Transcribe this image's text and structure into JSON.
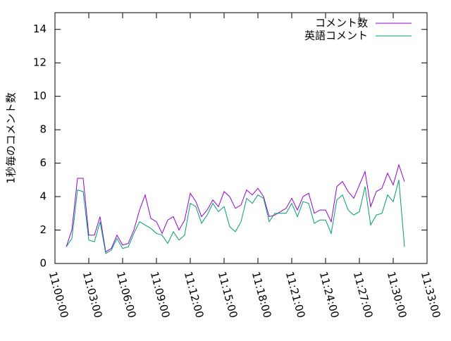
{
  "chart_data": {
    "type": "line",
    "ylabel": "1秒毎のコメント数",
    "x": [
      "11:01:00",
      "11:01:30",
      "11:02:00",
      "11:02:30",
      "11:03:00",
      "11:03:30",
      "11:04:00",
      "11:04:30",
      "11:05:00",
      "11:05:30",
      "11:06:00",
      "11:06:30",
      "11:07:00",
      "11:07:30",
      "11:08:00",
      "11:08:30",
      "11:09:00",
      "11:09:30",
      "11:10:00",
      "11:10:30",
      "11:11:00",
      "11:11:30",
      "11:12:00",
      "11:12:30",
      "11:13:00",
      "11:13:30",
      "11:14:00",
      "11:14:30",
      "11:15:00",
      "11:15:30",
      "11:16:00",
      "11:16:30",
      "11:17:00",
      "11:17:30",
      "11:18:00",
      "11:18:30",
      "11:19:00",
      "11:19:30",
      "11:20:00",
      "11:20:30",
      "11:21:00",
      "11:21:30",
      "11:22:00",
      "11:22:30",
      "11:23:00",
      "11:23:30",
      "11:24:00",
      "11:24:30",
      "11:25:00",
      "11:25:30",
      "11:26:00",
      "11:26:30",
      "11:27:00",
      "11:27:30",
      "11:28:00",
      "11:28:30",
      "11:29:00",
      "11:29:30",
      "11:30:00",
      "11:30:30",
      "11:31:00"
    ],
    "series": [
      {
        "name": "コメント数",
        "color": "#9400d3",
        "values": [
          1.0,
          2.0,
          5.1,
          5.1,
          1.7,
          1.7,
          2.8,
          0.7,
          0.9,
          1.7,
          1.1,
          1.2,
          2.0,
          3.2,
          4.1,
          2.7,
          2.5,
          1.8,
          2.6,
          2.8,
          2.0,
          2.6,
          4.2,
          3.7,
          2.8,
          3.2,
          3.8,
          3.4,
          4.3,
          4.0,
          3.3,
          3.5,
          4.4,
          4.1,
          4.5,
          4.0,
          2.8,
          2.9,
          3.1,
          3.3,
          3.9,
          3.2,
          4.0,
          4.2,
          3.0,
          3.2,
          3.2,
          2.5,
          4.6,
          4.9,
          4.3,
          3.9,
          4.7,
          5.5,
          3.4,
          4.3,
          4.5,
          5.4,
          4.7,
          5.9,
          4.9
        ]
      },
      {
        "name": "英語コメント",
        "color": "#009e73",
        "values": [
          1.0,
          1.5,
          4.4,
          4.3,
          1.4,
          1.3,
          2.5,
          0.6,
          0.8,
          1.5,
          0.9,
          1.0,
          1.8,
          2.5,
          2.3,
          2.1,
          1.8,
          1.7,
          1.2,
          1.9,
          1.4,
          1.7,
          3.6,
          3.4,
          2.4,
          2.9,
          3.6,
          3.1,
          3.4,
          2.2,
          1.9,
          2.5,
          3.9,
          3.6,
          4.1,
          3.9,
          2.5,
          3.0,
          3.0,
          3.0,
          3.6,
          2.8,
          3.7,
          3.6,
          2.4,
          2.6,
          2.6,
          1.8,
          3.8,
          4.1,
          3.2,
          2.9,
          3.1,
          4.6,
          2.3,
          2.9,
          3.0,
          4.1,
          3.7,
          5.0,
          1.0
        ]
      }
    ],
    "xlim": [
      "11:00:00",
      "11:33:00"
    ],
    "xticks": [
      "11:00:00",
      "11:03:00",
      "11:06:00",
      "11:09:00",
      "11:12:00",
      "11:15:00",
      "11:18:00",
      "11:21:00",
      "11:24:00",
      "11:27:00",
      "11:30:00",
      "11:33:00"
    ],
    "ylim": [
      0,
      15
    ],
    "yticks": [
      0,
      2,
      4,
      6,
      8,
      10,
      12,
      14
    ],
    "legend": "upper right"
  }
}
